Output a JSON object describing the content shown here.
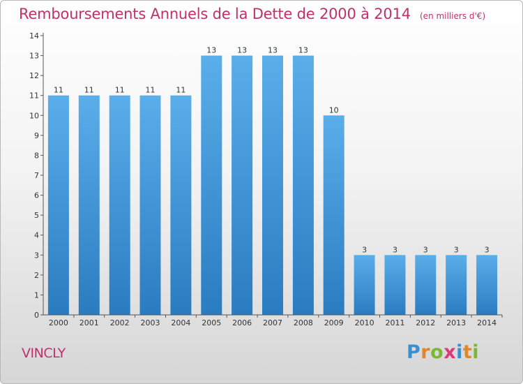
{
  "header": {
    "title": "Remboursements Annuels de la Dette de 2000 à 2014",
    "unit": "(en milliers d'€)"
  },
  "footer": {
    "commune": "VINCLY",
    "logo_text": "Proxiti"
  },
  "colors": {
    "title": "#c0306a",
    "bar_top": "#5aaeea",
    "bar_bottom": "#2a7cc0",
    "axis": "#555555"
  },
  "chart_data": {
    "type": "bar",
    "title": "Remboursements Annuels de la Dette de 2000 à 2014",
    "subtitle": "(en milliers d'€)",
    "xlabel": "",
    "ylabel": "",
    "categories": [
      "2000",
      "2001",
      "2002",
      "2003",
      "2004",
      "2005",
      "2006",
      "2007",
      "2008",
      "2009",
      "2010",
      "2011",
      "2012",
      "2013",
      "2014"
    ],
    "values": [
      11,
      11,
      11,
      11,
      11,
      13,
      13,
      13,
      13,
      10,
      3,
      3,
      3,
      3,
      3
    ],
    "data_labels": [
      "11",
      "11",
      "11",
      "11",
      "11",
      "13",
      "13",
      "13",
      "13",
      "10",
      "3",
      "3",
      "3",
      "3",
      "3"
    ],
    "ylim": [
      0,
      14
    ],
    "yticks": [
      "0",
      "1",
      "2",
      "3",
      "4",
      "5",
      "6",
      "7",
      "8",
      "9",
      "10",
      "11",
      "12",
      "13",
      "14"
    ],
    "grid": false,
    "legend": "none"
  }
}
